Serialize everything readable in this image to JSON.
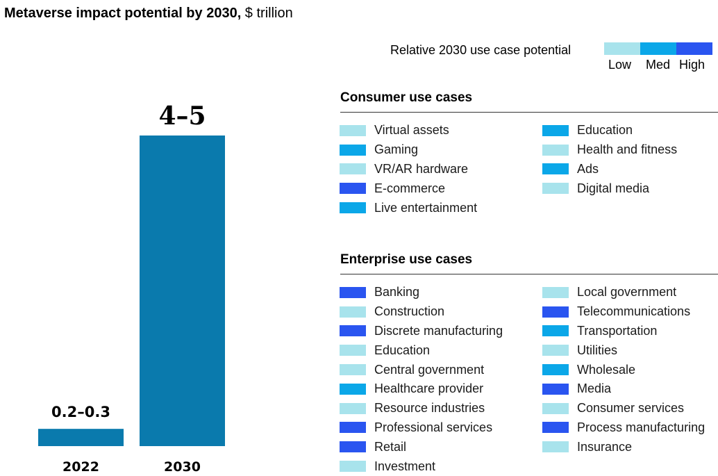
{
  "title": {
    "bold": "Metaverse impact potential by 2030,",
    "unit": " $ trillion"
  },
  "colors": {
    "bar": "#0a7aad",
    "low": "#a8e3ec",
    "med": "#0ba7e8",
    "high": "#2a55f0"
  },
  "scale": {
    "label": "Relative 2030 use case potential",
    "low": "Low",
    "med": "Med",
    "high": "High"
  },
  "chart_data": {
    "type": "bar",
    "title": "Metaverse impact potential by 2030, $ trillion",
    "categories": [
      "2022",
      "2030"
    ],
    "values": [
      0.25,
      4.5
    ],
    "value_labels": [
      "0.2–0.3",
      "4–5"
    ],
    "ylim": [
      0,
      4.5
    ],
    "grid": false
  },
  "consumer": {
    "title": "Consumer use cases",
    "rows": 5,
    "items": [
      {
        "label": "Virtual assets",
        "level": "low"
      },
      {
        "label": "Gaming",
        "level": "med"
      },
      {
        "label": "VR/AR hardware",
        "level": "low"
      },
      {
        "label": "E-commerce",
        "level": "high"
      },
      {
        "label": "Live entertainment",
        "level": "med"
      },
      {
        "label": "Education",
        "level": "med"
      },
      {
        "label": "Health and fitness",
        "level": "low"
      },
      {
        "label": "Ads",
        "level": "med"
      },
      {
        "label": "Digital media",
        "level": "low"
      }
    ]
  },
  "enterprise": {
    "title": "Enterprise use cases",
    "rows": 10,
    "items": [
      {
        "label": "Banking",
        "level": "high"
      },
      {
        "label": "Construction",
        "level": "low"
      },
      {
        "label": "Discrete manufacturing",
        "level": "high"
      },
      {
        "label": "Education",
        "level": "low"
      },
      {
        "label": "Central government",
        "level": "low"
      },
      {
        "label": "Healthcare provider",
        "level": "med"
      },
      {
        "label": "Resource industries",
        "level": "low"
      },
      {
        "label": "Professional services",
        "level": "high"
      },
      {
        "label": "Retail",
        "level": "high"
      },
      {
        "label": "Investment",
        "level": "low"
      },
      {
        "label": "Local government",
        "level": "low"
      },
      {
        "label": "Telecommunications",
        "level": "high"
      },
      {
        "label": "Transportation",
        "level": "med"
      },
      {
        "label": "Utilities",
        "level": "low"
      },
      {
        "label": "Wholesale",
        "level": "med"
      },
      {
        "label": "Media",
        "level": "high"
      },
      {
        "label": "Consumer services",
        "level": "low"
      },
      {
        "label": "Process manufacturing",
        "level": "high"
      },
      {
        "label": "Insurance",
        "level": "low"
      }
    ]
  }
}
